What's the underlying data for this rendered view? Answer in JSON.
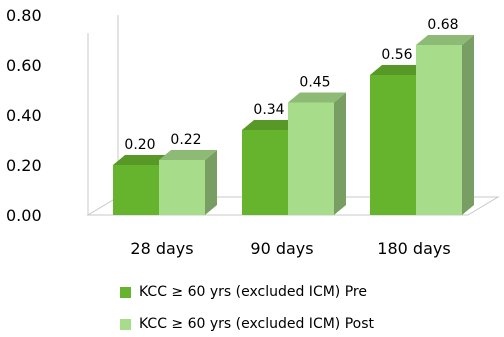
{
  "chart_data": {
    "type": "bar",
    "categories": [
      "28 days",
      "90 days",
      "180 days"
    ],
    "series": [
      {
        "name": "KCC  ≥ 60 yrs (excluded ICM) Pre",
        "values": [
          0.2,
          0.34,
          0.56
        ],
        "labels": [
          "0.20",
          "0.34",
          "0.56"
        ],
        "color": "#66b32e"
      },
      {
        "name": "KCC  ≥ 60 yrs (excluded ICM) Post",
        "values": [
          0.22,
          0.45,
          0.68
        ],
        "labels": [
          "0.22",
          "0.45",
          "0.68"
        ],
        "color": "#a6dc8a"
      }
    ],
    "yticks": [
      "0.00",
      "0.20",
      "0.40",
      "0.60",
      "0.80"
    ],
    "ylim": [
      0,
      0.8
    ],
    "legend_position": "bottom",
    "grid": false,
    "style": "3d-bar"
  }
}
